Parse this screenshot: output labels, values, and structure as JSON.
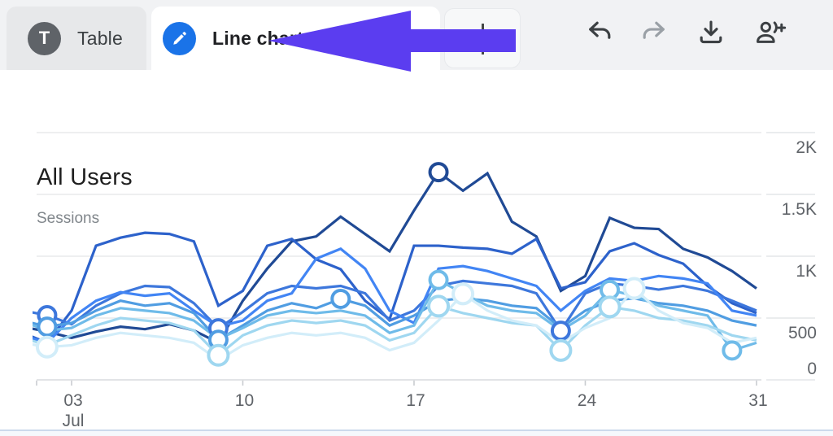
{
  "tabbar": {
    "tabs": [
      {
        "id": "table",
        "label": "Table",
        "badge_letter": "T",
        "active": false
      },
      {
        "id": "line-chart",
        "label": "Line chart",
        "icon": "pencil-icon",
        "active": true
      }
    ],
    "add_tab": {
      "icon": "plus-icon"
    },
    "toolbar_icons": [
      "undo-icon",
      "redo-icon",
      "download-icon",
      "person-add-icon",
      "partial-circle-icon"
    ]
  },
  "annotation": {
    "type": "arrow-left",
    "color": "#5b3df0",
    "points_to": "line-chart-tab"
  },
  "chart_data": {
    "type": "line",
    "title": "All Users",
    "metric": "Sessions",
    "x_domain": {
      "start_day": 1,
      "end_day": 31,
      "month": "Jul"
    },
    "ylim": [
      0,
      2000
    ],
    "grid": true,
    "y_ticks": [
      {
        "value": 2000,
        "label": "2K"
      },
      {
        "value": 1500,
        "label": "1.5K"
      },
      {
        "value": 1000,
        "label": "1K"
      },
      {
        "value": 500,
        "label": "500"
      },
      {
        "value": 0,
        "label": "0"
      }
    ],
    "x_ticks": [
      {
        "day": 3,
        "label": "03",
        "sublabel": "Jul"
      },
      {
        "day": 10,
        "label": "10"
      },
      {
        "day": 17,
        "label": "17"
      },
      {
        "day": 24,
        "label": "24"
      },
      {
        "day": 31,
        "label": "31"
      }
    ],
    "series": [
      {
        "name": "s1",
        "color": "#204a95",
        "values": [
          430,
          390,
          340,
          390,
          430,
          410,
          450,
          400,
          300,
          640,
          900,
          1120,
          1160,
          1320,
          1180,
          1040,
          1370,
          1680,
          1530,
          1670,
          1280,
          1160,
          720,
          840,
          1310,
          1230,
          1220,
          1060,
          990,
          880,
          740
        ]
      },
      {
        "name": "s2",
        "color": "#2d62cb",
        "values": [
          380,
          300,
          560,
          1085,
          1150,
          1190,
          1180,
          1120,
          600,
          720,
          1085,
          1140,
          975,
          895,
          640,
          490,
          1085,
          1085,
          1070,
          1060,
          1020,
          1140,
          740,
          790,
          1040,
          1105,
          1010,
          940,
          760,
          620,
          540
        ]
      },
      {
        "name": "s3",
        "color": "#3d77dc",
        "values": [
          560,
          523,
          450,
          600,
          700,
          760,
          750,
          620,
          417,
          550,
          700,
          760,
          740,
          760,
          700,
          480,
          560,
          760,
          800,
          780,
          760,
          700,
          397,
          700,
          780,
          760,
          730,
          760,
          720,
          640,
          560
        ]
      },
      {
        "name": "s4",
        "color": "#4285f4",
        "values": [
          360,
          300,
          500,
          640,
          710,
          680,
          700,
          560,
          430,
          480,
          640,
          700,
          980,
          1060,
          900,
          560,
          460,
          900,
          920,
          880,
          820,
          760,
          560,
          720,
          820,
          800,
          840,
          820,
          780,
          560,
          520
        ]
      },
      {
        "name": "s5",
        "color": "#509de2",
        "values": [
          480,
          430,
          460,
          560,
          640,
          600,
          620,
          540,
          324,
          440,
          560,
          620,
          580,
          655,
          600,
          440,
          520,
          640,
          660,
          640,
          600,
          580,
          420,
          560,
          640,
          660,
          620,
          600,
          560,
          480,
          440
        ]
      },
      {
        "name": "s6",
        "color": "#6fbbe9",
        "values": [
          470,
          400,
          420,
          520,
          580,
          560,
          540,
          480,
          330,
          420,
          520,
          560,
          540,
          560,
          520,
          380,
          440,
          808,
          700,
          600,
          560,
          540,
          400,
          520,
          728,
          680,
          600,
          560,
          520,
          238,
          300
        ]
      },
      {
        "name": "s7",
        "color": "#9fd7f0",
        "values": [
          340,
          280,
          360,
          440,
          500,
          480,
          460,
          400,
          199,
          360,
          440,
          480,
          460,
          480,
          440,
          320,
          380,
          596,
          540,
          500,
          460,
          440,
          238,
          440,
          590,
          560,
          500,
          480,
          440,
          360,
          320
        ]
      },
      {
        "name": "s8",
        "color": "#d2edf9",
        "values": [
          300,
          265,
          280,
          340,
          380,
          360,
          340,
          300,
          160,
          280,
          340,
          380,
          360,
          380,
          340,
          240,
          300,
          480,
          695,
          560,
          480,
          440,
          300,
          420,
          500,
          740,
          560,
          460,
          420,
          300,
          340
        ]
      }
    ],
    "markers": [
      {
        "day": 2,
        "series": 2,
        "value": 523
      },
      {
        "day": 2,
        "series": 4,
        "value": 430
      },
      {
        "day": 2,
        "series": 7,
        "value": 265
      },
      {
        "day": 9,
        "series": 2,
        "value": 417
      },
      {
        "day": 9,
        "series": 4,
        "value": 324
      },
      {
        "day": 9,
        "series": 6,
        "value": 199
      },
      {
        "day": 14,
        "series": 4,
        "value": 655
      },
      {
        "day": 18,
        "series": 0,
        "value": 1680
      },
      {
        "day": 18,
        "series": 5,
        "value": 808
      },
      {
        "day": 18,
        "series": 6,
        "value": 596
      },
      {
        "day": 19,
        "series": 7,
        "value": 695
      },
      {
        "day": 23,
        "series": 2,
        "value": 397
      },
      {
        "day": 23,
        "series": 6,
        "value": 238
      },
      {
        "day": 25,
        "series": 5,
        "value": 728
      },
      {
        "day": 25,
        "series": 6,
        "value": 590
      },
      {
        "day": 26,
        "series": 7,
        "value": 740
      },
      {
        "day": 30,
        "series": 5,
        "value": 238
      }
    ]
  }
}
